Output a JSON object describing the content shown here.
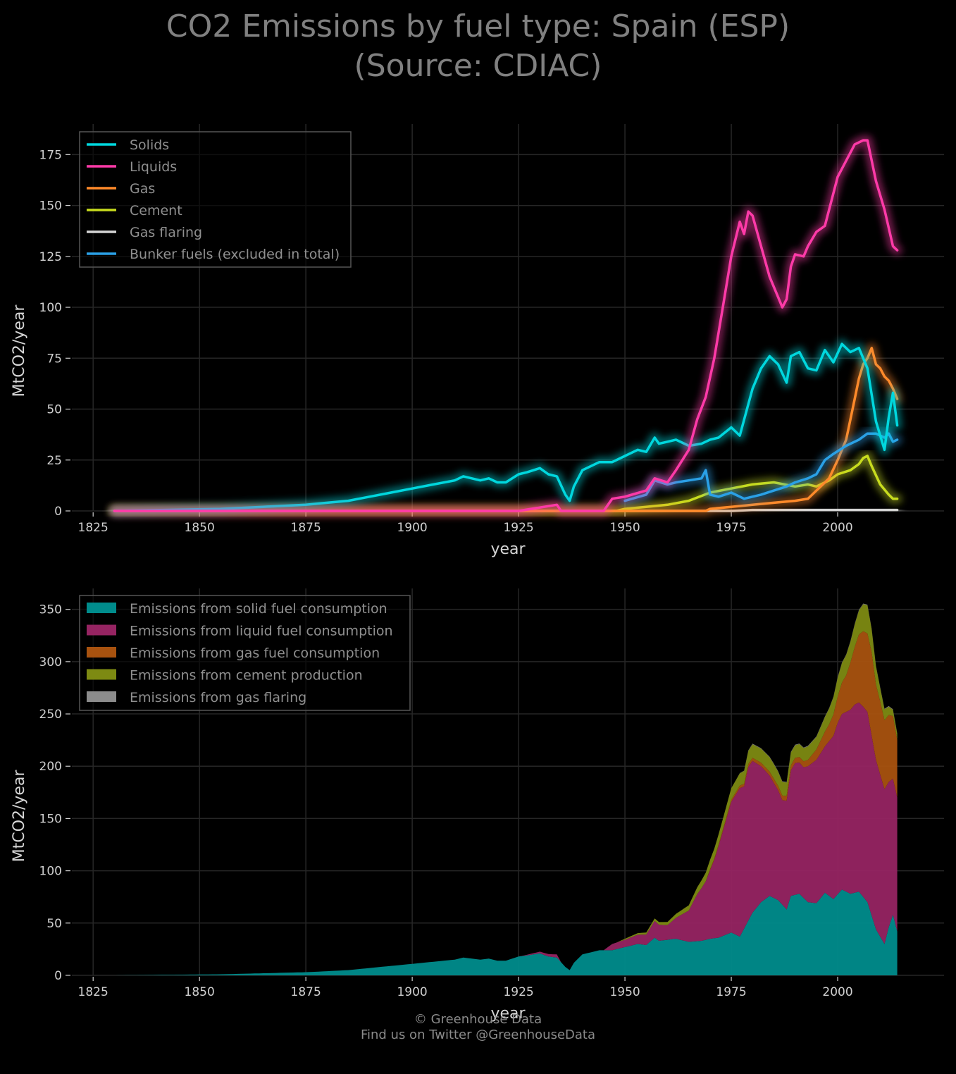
{
  "title_line1": "CO2 Emissions by fuel type: Spain (ESP)",
  "title_line2": "(Source: CDIAC)",
  "footer_line1": "© Greenhouse Data",
  "footer_line2": "Find us on Twitter @GreenhouseData",
  "colors": {
    "background": "#000000",
    "grid": "#262626",
    "solids": "#00d7de",
    "liquids": "#ff3aa8",
    "gas": "#ff8a2a",
    "cement": "#c8dc1e",
    "flaring": "#d4d4d4",
    "bunker": "#2aa0e6",
    "area_solid": "#008c8c",
    "area_liquid": "#962462",
    "area_gas": "#a8520f",
    "area_cement": "#7d8a12",
    "area_flaring": "#8c8c8c"
  },
  "chart_data": [
    {
      "type": "line",
      "xlabel": "year",
      "ylabel": "MtCO2/year",
      "xlim": [
        1820,
        2025
      ],
      "ylim": [
        0,
        190
      ],
      "xticks": [
        1825,
        1850,
        1875,
        1900,
        1925,
        1950,
        1975,
        2000
      ],
      "yticks": [
        0,
        25,
        50,
        75,
        100,
        125,
        150,
        175
      ],
      "grid": true,
      "legend_position": "top-left",
      "series": [
        {
          "name": "Solids",
          "color_key": "solids",
          "x": [
            1830,
            1855,
            1865,
            1875,
            1880,
            1885,
            1890,
            1895,
            1900,
            1905,
            1910,
            1912,
            1914,
            1916,
            1918,
            1920,
            1922,
            1925,
            1927,
            1930,
            1932,
            1934,
            1936,
            1937,
            1938,
            1940,
            1944,
            1947,
            1950,
            1953,
            1955,
            1957,
            1958,
            1960,
            1962,
            1965,
            1968,
            1970,
            1972,
            1975,
            1977,
            1980,
            1982,
            1984,
            1986,
            1988,
            1989,
            1991,
            1993,
            1995,
            1997,
            1999,
            2001,
            2003,
            2005,
            2007,
            2009,
            2011,
            2012,
            2013,
            2014
          ],
          "y": [
            0,
            1,
            2,
            3,
            4,
            5,
            7,
            9,
            11,
            13,
            15,
            17,
            16,
            15,
            16,
            14,
            14,
            18,
            19,
            21,
            18,
            17,
            8,
            5,
            12,
            20,
            24,
            24,
            27,
            30,
            29,
            36,
            33,
            34,
            35,
            32,
            33,
            35,
            36,
            41,
            37,
            60,
            70,
            76,
            72,
            63,
            76,
            78,
            70,
            69,
            79,
            73,
            82,
            78,
            80,
            70,
            44,
            30,
            46,
            58,
            42
          ]
        },
        {
          "name": "Liquids",
          "color_key": "liquids",
          "x": [
            1830,
            1900,
            1925,
            1934,
            1935,
            1945,
            1947,
            1950,
            1955,
            1957,
            1960,
            1962,
            1965,
            1967,
            1969,
            1971,
            1973,
            1975,
            1977,
            1978,
            1979,
            1980,
            1982,
            1984,
            1986,
            1987,
            1988,
            1989,
            1990,
            1992,
            1993,
            1995,
            1997,
            1998,
            2000,
            2002,
            2004,
            2006,
            2007,
            2009,
            2011,
            2013,
            2014
          ],
          "y": [
            0,
            0,
            0,
            3,
            0,
            0,
            6,
            7,
            10,
            16,
            14,
            20,
            30,
            45,
            56,
            75,
            100,
            125,
            142,
            136,
            147,
            145,
            130,
            115,
            105,
            100,
            104,
            120,
            126,
            125,
            130,
            137,
            140,
            148,
            164,
            172,
            180,
            182,
            182,
            162,
            148,
            130,
            128
          ]
        },
        {
          "name": "Gas",
          "color_key": "gas",
          "x": [
            1830,
            1969,
            1970,
            1975,
            1980,
            1985,
            1990,
            1993,
            1995,
            1998,
            2000,
            2002,
            2004,
            2005,
            2006,
            2007,
            2008,
            2009,
            2010,
            2011,
            2012,
            2013,
            2014
          ],
          "y": [
            0,
            0,
            1,
            2,
            3,
            4,
            5,
            6,
            10,
            16,
            25,
            35,
            55,
            65,
            72,
            75,
            80,
            72,
            70,
            66,
            64,
            60,
            55
          ]
        },
        {
          "name": "Cement",
          "color_key": "cement",
          "x": [
            1830,
            1948,
            1950,
            1955,
            1960,
            1965,
            1970,
            1975,
            1980,
            1985,
            1990,
            1993,
            1995,
            1998,
            2000,
            2003,
            2005,
            2006,
            2007,
            2008,
            2010,
            2012,
            2013,
            2014
          ],
          "y": [
            0,
            0,
            1,
            2,
            3,
            5,
            9,
            11,
            13,
            14,
            12,
            13,
            12,
            15,
            18,
            20,
            23,
            26,
            27,
            22,
            13,
            8,
            6,
            6
          ]
        },
        {
          "name": "Gas flaring",
          "color_key": "flaring",
          "x": [
            1830,
            1975,
            1980,
            2000,
            2014
          ],
          "y": [
            0,
            0,
            0.5,
            0.5,
            0.5
          ]
        },
        {
          "name": "Bunker fuels (excluded in total)",
          "color_key": "bunker",
          "x": [
            1950,
            1955,
            1957,
            1960,
            1962,
            1965,
            1968,
            1969,
            1970,
            1972,
            1975,
            1978,
            1980,
            1982,
            1985,
            1988,
            1990,
            1993,
            1995,
            1997,
            1999,
            2002,
            2005,
            2007,
            2009,
            2011,
            2012,
            2013,
            2014
          ],
          "y": [
            5,
            8,
            15,
            13,
            14,
            15,
            16,
            20,
            8,
            7,
            9,
            6,
            7,
            8,
            10,
            12,
            14,
            16,
            18,
            25,
            28,
            32,
            35,
            38,
            38,
            36,
            38,
            34,
            35
          ]
        }
      ]
    },
    {
      "type": "area",
      "stacked": true,
      "xlabel": "year",
      "ylabel": "MtCO2/year",
      "xlim": [
        1820,
        2025
      ],
      "ylim": [
        0,
        370
      ],
      "xticks": [
        1825,
        1850,
        1875,
        1900,
        1925,
        1950,
        1975,
        2000
      ],
      "yticks": [
        0,
        50,
        100,
        150,
        200,
        250,
        300,
        350
      ],
      "grid": true,
      "legend_position": "top-left",
      "series": [
        {
          "name": "Emissions from solid fuel consumption",
          "color_key": "area_solid"
        },
        {
          "name": "Emissions from liquid fuel consumption",
          "color_key": "area_liquid"
        },
        {
          "name": "Emissions from gas fuel consumption",
          "color_key": "area_gas"
        },
        {
          "name": "Emissions from cement production",
          "color_key": "area_cement"
        },
        {
          "name": "Emissions from gas flaring",
          "color_key": "area_flaring"
        }
      ],
      "source": "stacked from the series of the first chart"
    }
  ]
}
